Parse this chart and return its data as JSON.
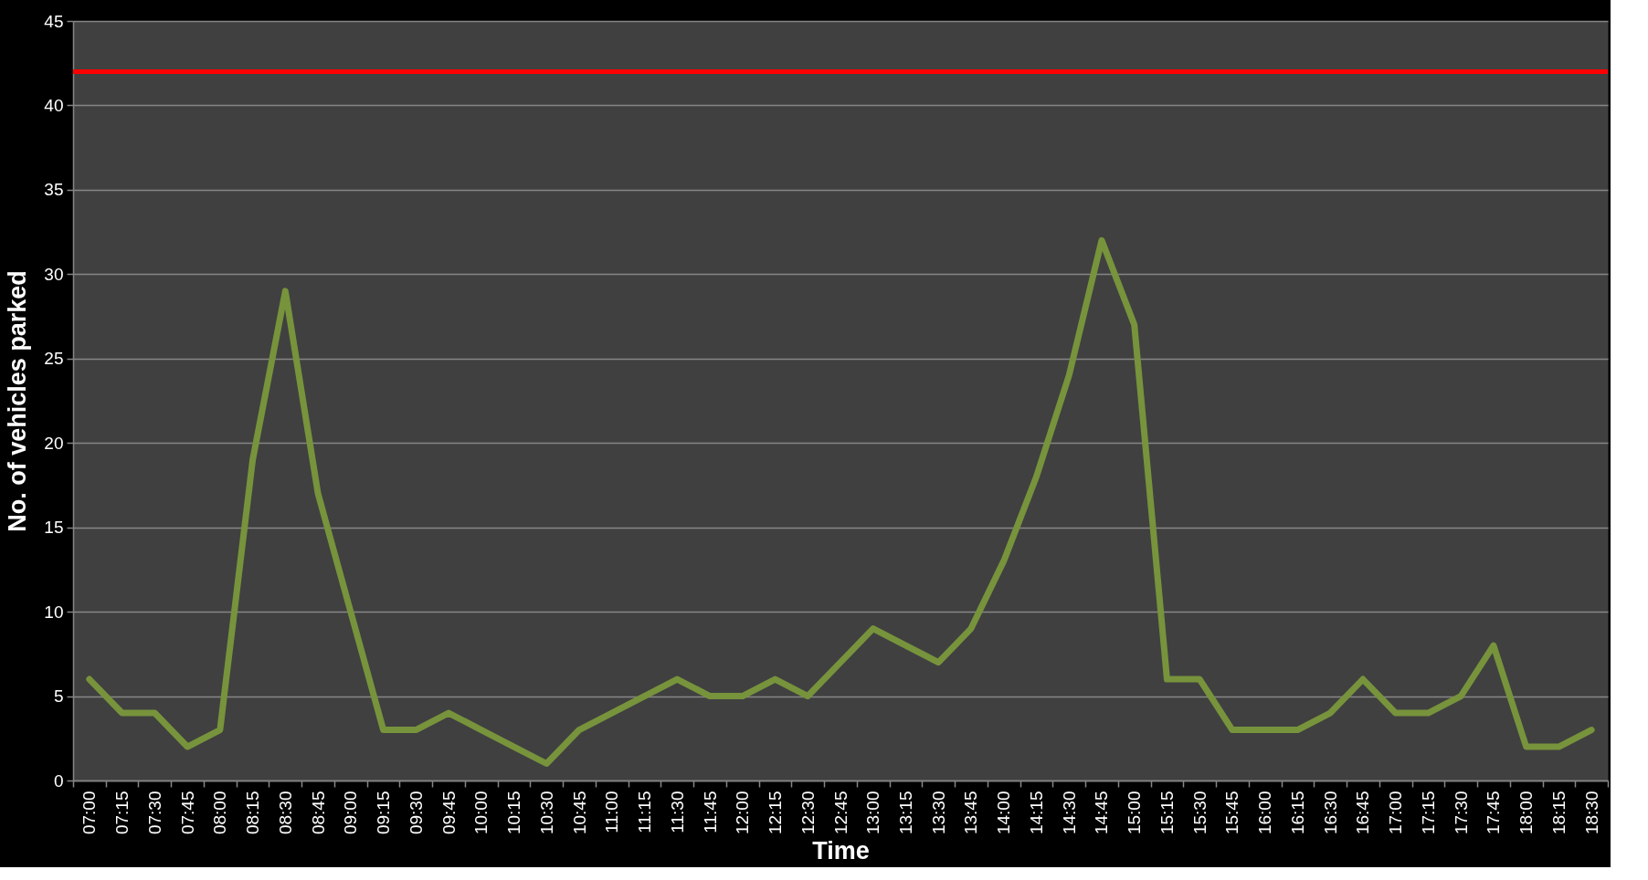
{
  "chart_data": {
    "type": "line",
    "xlabel": "Time",
    "ylabel": "No. of vehicles parked",
    "categories": [
      "07:00",
      "07:15",
      "07:30",
      "07:45",
      "08:00",
      "08:15",
      "08:30",
      "08:45",
      "09:00",
      "09:15",
      "09:30",
      "09:45",
      "10:00",
      "10:15",
      "10:30",
      "10:45",
      "11:00",
      "11:15",
      "11:30",
      "11:45",
      "12:00",
      "12:15",
      "12:30",
      "12:45",
      "13:00",
      "13:15",
      "13:30",
      "13:45",
      "14:00",
      "14:15",
      "14:30",
      "14:45",
      "15:00",
      "15:15",
      "15:30",
      "15:45",
      "16:00",
      "16:15",
      "16:30",
      "16:45",
      "17:00",
      "17:15",
      "17:30",
      "17:45",
      "18:00",
      "18:15",
      "18:30"
    ],
    "series": [
      {
        "color": "#77933c",
        "values": [
          6,
          4,
          4,
          2,
          3,
          19,
          29,
          17,
          10,
          3,
          3,
          4,
          3,
          2,
          1,
          3,
          4,
          5,
          6,
          5,
          5,
          6,
          5,
          7,
          9,
          8,
          7,
          9,
          13,
          18,
          24,
          32,
          27,
          6,
          6,
          3,
          3,
          3,
          4,
          6,
          4,
          4,
          5,
          8,
          2,
          2,
          3
        ]
      }
    ],
    "ylim": [
      0,
      45
    ],
    "yticks": [
      0,
      5,
      10,
      15,
      20,
      25,
      30,
      35,
      40,
      45
    ],
    "grid": "y",
    "line_style": "solid",
    "ref_lines": [
      {
        "axis": "y",
        "value": 42,
        "color": "#ff0000"
      }
    ]
  }
}
